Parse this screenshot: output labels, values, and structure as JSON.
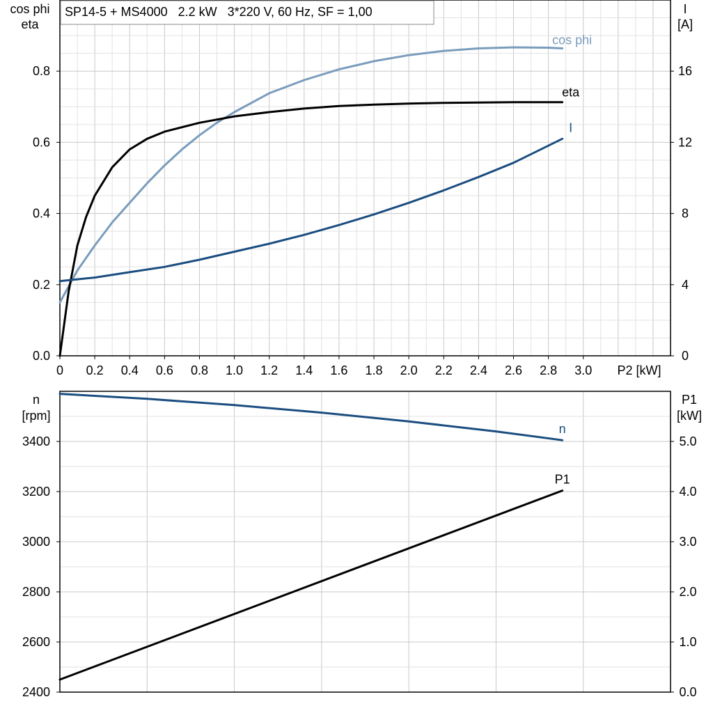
{
  "header": {
    "title": "SP14-5 + MS4000   2.2 kW   3*220 V, 60 Hz, SF = 1,00"
  },
  "chart_data": [
    {
      "type": "line",
      "panel": "top",
      "grid": true,
      "xlabel": "P2 [kW]",
      "xlim": [
        0,
        3.5
      ],
      "x_ticks": [
        "0",
        "0.2",
        "0.4",
        "0.6",
        "0.8",
        "1.0",
        "1.2",
        "1.4",
        "1.6",
        "1.8",
        "2.0",
        "2.2",
        "2.4",
        "2.6",
        "2.8",
        "3.0"
      ],
      "left_axis": {
        "label_line1": "cos phi",
        "label_line2": "eta",
        "ylim": [
          0,
          1.0
        ],
        "ticks": [
          "0.0",
          "0.2",
          "0.4",
          "0.6",
          "0.8"
        ]
      },
      "right_axis": {
        "label_line1": "I",
        "label_line2": "[A]",
        "ylim": [
          0,
          20
        ],
        "ticks": [
          "0",
          "4",
          "8",
          "12",
          "16"
        ]
      },
      "series": [
        {
          "name": "cos phi",
          "axis": "left",
          "color": "#7a9cbc",
          "x": [
            0,
            0.1,
            0.2,
            0.3,
            0.4,
            0.5,
            0.6,
            0.7,
            0.8,
            0.9,
            1.0,
            1.2,
            1.4,
            1.6,
            1.8,
            2.0,
            2.2,
            2.4,
            2.6,
            2.8,
            2.88
          ],
          "y": [
            0.15,
            0.24,
            0.31,
            0.375,
            0.43,
            0.485,
            0.535,
            0.58,
            0.62,
            0.655,
            0.685,
            0.738,
            0.775,
            0.805,
            0.828,
            0.845,
            0.857,
            0.864,
            0.867,
            0.866,
            0.864
          ]
        },
        {
          "name": "eta",
          "axis": "left",
          "color": "#000000",
          "x": [
            0,
            0.05,
            0.1,
            0.15,
            0.2,
            0.3,
            0.4,
            0.5,
            0.6,
            0.8,
            1.0,
            1.2,
            1.4,
            1.6,
            1.8,
            2.0,
            2.2,
            2.4,
            2.6,
            2.88
          ],
          "y": [
            0.0,
            0.18,
            0.31,
            0.39,
            0.45,
            0.53,
            0.58,
            0.61,
            0.63,
            0.655,
            0.673,
            0.685,
            0.695,
            0.702,
            0.706,
            0.709,
            0.711,
            0.712,
            0.713,
            0.713
          ]
        },
        {
          "name": "I",
          "axis": "right",
          "color": "#1b4d80",
          "x": [
            0,
            0.2,
            0.4,
            0.6,
            0.8,
            1.0,
            1.2,
            1.4,
            1.6,
            1.8,
            2.0,
            2.2,
            2.4,
            2.6,
            2.88
          ],
          "y": [
            4.2,
            4.4,
            4.7,
            5.0,
            5.4,
            5.85,
            6.3,
            6.8,
            7.35,
            7.95,
            8.6,
            9.3,
            10.05,
            10.85,
            12.2
          ]
        }
      ]
    },
    {
      "type": "line",
      "panel": "bottom",
      "grid": true,
      "xlim": [
        0,
        3.5
      ],
      "left_axis": {
        "label_line1": "n",
        "label_line2": "[rpm]",
        "ylim": [
          2400,
          3600
        ],
        "ticks": [
          "2400",
          "2600",
          "2800",
          "3000",
          "3200",
          "3400"
        ]
      },
      "right_axis": {
        "label_line1": "P1",
        "label_line2": "[kW]",
        "ylim": [
          0,
          6.0
        ],
        "ticks": [
          "0.0",
          "1.0",
          "2.0",
          "3.0",
          "4.0",
          "5.0"
        ]
      },
      "series": [
        {
          "name": "n",
          "axis": "left",
          "color": "#1b4d80",
          "x": [
            0,
            0.5,
            1.0,
            1.5,
            2.0,
            2.5,
            2.88
          ],
          "y": [
            3590,
            3570,
            3545,
            3515,
            3480,
            3440,
            3405
          ]
        },
        {
          "name": "P1",
          "axis": "right",
          "color": "#000000",
          "x": [
            0,
            2.88
          ],
          "y": [
            0.25,
            4.02
          ]
        }
      ]
    }
  ]
}
